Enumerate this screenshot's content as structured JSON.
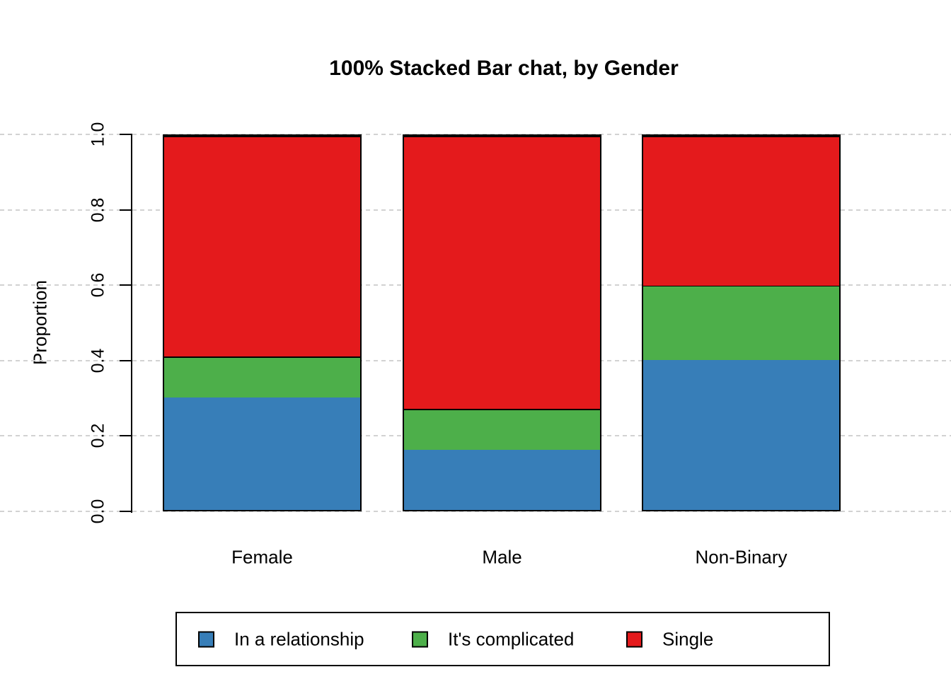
{
  "chart": {
    "title": "100% Stacked Bar chat, by Gender",
    "ylabel": "Proportion"
  },
  "chart_data": {
    "type": "bar",
    "stacked": true,
    "percent": true,
    "title": "100% Stacked Bar chat, by Gender",
    "xlabel": "",
    "ylabel": "Proportion",
    "categories": [
      "Female",
      "Male",
      "Non-Binary"
    ],
    "series": [
      {
        "name": "In a relationship",
        "color": "#377EB8",
        "values": [
          0.3,
          0.16,
          0.4
        ]
      },
      {
        "name": "It's complicated",
        "color": "#4DAF4A",
        "values": [
          0.11,
          0.11,
          0.2
        ]
      },
      {
        "name": "Single",
        "color": "#E41A1C",
        "values": [
          0.59,
          0.73,
          0.4
        ]
      }
    ],
    "ylim": [
      0.0,
      1.0
    ],
    "yticks": [
      "0.0",
      "0.2",
      "0.4",
      "0.6",
      "0.8",
      "1.0"
    ],
    "grid": "horizontal-dashed",
    "gridline_color": "#d2d2d2",
    "axis_color": "#000000",
    "legend_position": "bottom",
    "legend_border": true
  }
}
